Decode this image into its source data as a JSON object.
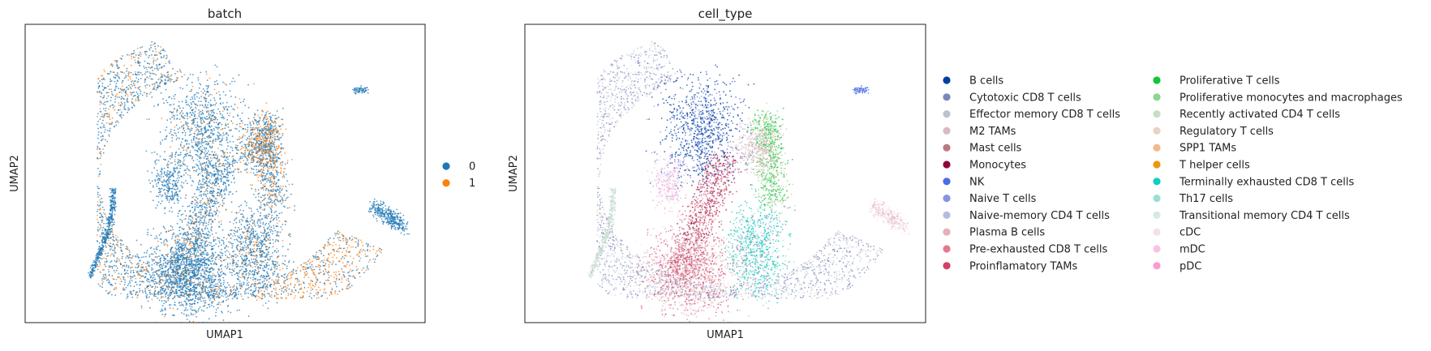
{
  "chart_data": [
    {
      "type": "scatter",
      "title": "batch",
      "xlabel": "UMAP1",
      "ylabel": "UMAP2",
      "legend_placement": "right",
      "categories": [
        {
          "name": "0",
          "color": "#1f77b4"
        },
        {
          "name": "1",
          "color": "#ff7f0e"
        }
      ]
    },
    {
      "type": "scatter",
      "title": "cell_type",
      "xlabel": "UMAP1",
      "ylabel": "UMAP2",
      "legend_placement": "right",
      "categories": [
        {
          "name": "B cells",
          "color": "#023fa5"
        },
        {
          "name": "Cytotoxic CD8 T cells",
          "color": "#7d87b9"
        },
        {
          "name": "Effector memory CD8 T cells",
          "color": "#bec1d4"
        },
        {
          "name": "M2 TAMs",
          "color": "#d6bcc0"
        },
        {
          "name": "Mast cells",
          "color": "#bb7784"
        },
        {
          "name": "Monocytes",
          "color": "#8e063b"
        },
        {
          "name": "NK",
          "color": "#4a6fe3"
        },
        {
          "name": "Naive T cells",
          "color": "#8595e1"
        },
        {
          "name": "Naive-memory CD4 T cells",
          "color": "#b5bbe3"
        },
        {
          "name": "Plasma B cells",
          "color": "#e6afb9"
        },
        {
          "name": "Pre-exhausted CD8 T cells",
          "color": "#e07b91"
        },
        {
          "name": "Proinflamatory TAMs",
          "color": "#d33f6a"
        },
        {
          "name": "Proliferative T cells",
          "color": "#11c638"
        },
        {
          "name": "Proliferative monocytes and macrophages",
          "color": "#8dd593"
        },
        {
          "name": "Recently activated CD4 T cells",
          "color": "#c6dec7"
        },
        {
          "name": "Regulatory T cells",
          "color": "#ead3c6"
        },
        {
          "name": "SPP1 TAMs",
          "color": "#f0b98d"
        },
        {
          "name": "T helper cells",
          "color": "#ef9708"
        },
        {
          "name": "Terminally exhausted CD8 T cells",
          "color": "#0fcfc0"
        },
        {
          "name": "Th17 cells",
          "color": "#9cded6"
        },
        {
          "name": "Transitional memory CD4 T cells",
          "color": "#d5eae7"
        },
        {
          "name": "cDC",
          "color": "#f3e1eb"
        },
        {
          "name": "mDC",
          "color": "#f6c4e1"
        },
        {
          "name": "pDC",
          "color": "#f79cd4"
        }
      ]
    }
  ]
}
